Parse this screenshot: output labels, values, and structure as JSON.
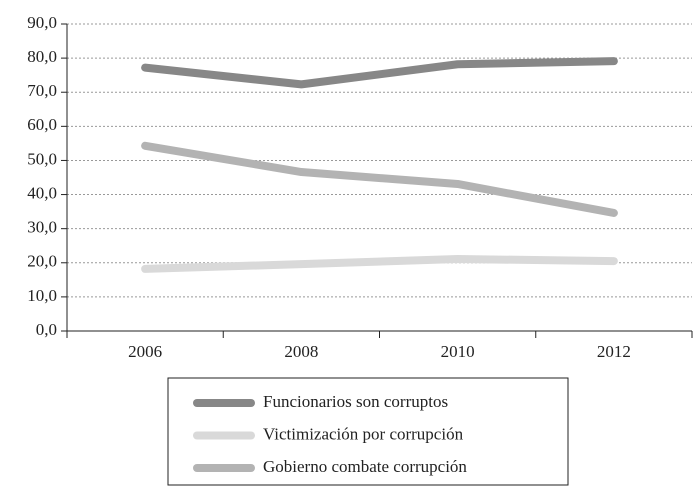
{
  "chart_data": {
    "type": "line",
    "categories": [
      "2006",
      "2008",
      "2010",
      "2012"
    ],
    "series": [
      {
        "name": "Funcionarios son corruptos",
        "color": "#878787",
        "values": [
          77.2,
          72.3,
          78.2,
          79.1
        ]
      },
      {
        "name": "Victimización por corrupción",
        "color": "#d9d9d9",
        "values": [
          18.2,
          19.6,
          21.1,
          20.5
        ]
      },
      {
        "name": "Gobierno combate corrupción",
        "color": "#b3b3b3",
        "values": [
          54.3,
          46.6,
          43.1,
          34.6
        ]
      }
    ],
    "ylim": [
      0,
      90
    ],
    "yticks": [
      {
        "value": 0,
        "label": "0,0"
      },
      {
        "value": 10,
        "label": "10,0"
      },
      {
        "value": 20,
        "label": "20,0"
      },
      {
        "value": 30,
        "label": "30,0"
      },
      {
        "value": 40,
        "label": "40,0"
      },
      {
        "value": 50,
        "label": "50,0"
      },
      {
        "value": 60,
        "label": "60,0"
      },
      {
        "value": 70,
        "label": "70,0"
      },
      {
        "value": 80,
        "label": "80,0"
      },
      {
        "value": 90,
        "label": "90,0"
      }
    ],
    "grid": true
  }
}
